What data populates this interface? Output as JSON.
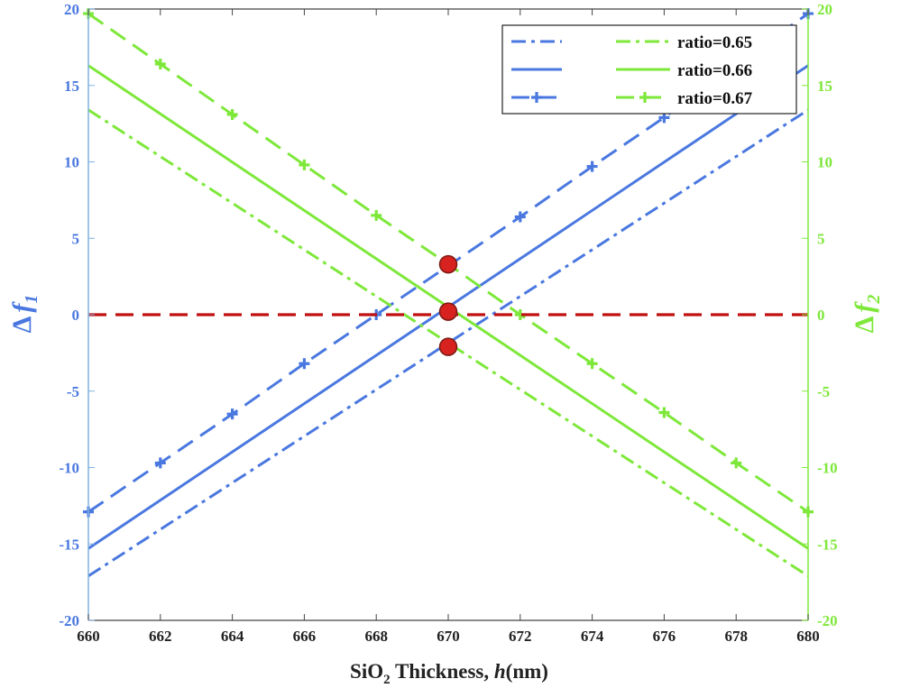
{
  "chart_data": {
    "type": "line",
    "xlabel_parts": [
      "SiO",
      "2",
      " Thickness, ",
      "h",
      "(nm)"
    ],
    "ylabel_left_parts": [
      "Δ",
      "f",
      "1"
    ],
    "ylabel_right_parts": [
      "Δ",
      "f",
      "2"
    ],
    "xlim": [
      660,
      680
    ],
    "ylim_left": [
      -20,
      20
    ],
    "ylim_right": [
      -20,
      20
    ],
    "x_ticks": [
      "660",
      "662",
      "664",
      "666",
      "668",
      "670",
      "672",
      "674",
      "676",
      "678",
      "680"
    ],
    "y_ticks": [
      "20",
      "15",
      "10",
      "5",
      "0",
      "-5",
      "-10",
      "-15",
      "-20"
    ],
    "grid": false,
    "legend_placement": "top-right",
    "colors": {
      "blue": "#4a78e0",
      "green": "#7ee83a",
      "red_line": "#c01010",
      "marker_fill": "#d8221f",
      "marker_edge": "#7a1a14"
    },
    "series": [
      {
        "name": "",
        "axis": "left",
        "color": "blue",
        "style": "dashdot",
        "marker": "none",
        "x": [
          660,
          680
        ],
        "y": [
          -17.1,
          13.4
        ]
      },
      {
        "name": "",
        "axis": "left",
        "color": "blue",
        "style": "solid",
        "marker": "none",
        "x": [
          660,
          680
        ],
        "y": [
          -15.3,
          16.3
        ]
      },
      {
        "name": "",
        "axis": "left",
        "color": "blue",
        "style": "dashed",
        "marker": "plus",
        "x": [
          660,
          662,
          664,
          666,
          668,
          670,
          672,
          674,
          676,
          678,
          680
        ],
        "y": [
          -12.9,
          -9.7,
          -6.5,
          -3.2,
          0.0,
          3.2,
          6.4,
          9.7,
          12.9,
          16.4,
          19.7
        ]
      },
      {
        "name": "ratio=0.65",
        "axis": "right",
        "color": "green",
        "style": "dashdot",
        "marker": "none",
        "x": [
          660,
          680
        ],
        "y": [
          13.4,
          -17.1
        ]
      },
      {
        "name": "ratio=0.66",
        "axis": "right",
        "color": "green",
        "style": "solid",
        "marker": "none",
        "x": [
          660,
          680
        ],
        "y": [
          16.3,
          -15.3
        ]
      },
      {
        "name": "ratio=0.67",
        "axis": "right",
        "color": "green",
        "style": "dashed",
        "marker": "plus",
        "x": [
          660,
          662,
          664,
          666,
          668,
          670,
          672,
          674,
          676,
          678,
          680
        ],
        "y": [
          19.7,
          16.4,
          13.1,
          9.8,
          6.5,
          3.3,
          0.0,
          -3.2,
          -6.4,
          -9.7,
          -12.9
        ]
      },
      {
        "name": "",
        "axis": "left",
        "color": "red_line",
        "style": "dashed",
        "marker": "none",
        "x": [
          660,
          680
        ],
        "y": [
          0,
          0
        ]
      }
    ],
    "highlight_points": [
      {
        "x": 670,
        "y": 3.3
      },
      {
        "x": 670,
        "y": 0.2
      },
      {
        "x": 670,
        "y": -2.1
      }
    ],
    "legend": [
      {
        "left_series": 0,
        "right_series": 3,
        "label": "ratio=0.65"
      },
      {
        "left_series": 1,
        "right_series": 4,
        "label": "ratio=0.66"
      },
      {
        "left_series": 2,
        "right_series": 5,
        "label": "ratio=0.67"
      }
    ]
  }
}
